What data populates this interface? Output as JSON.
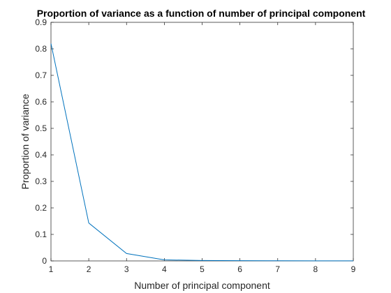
{
  "chart_data": {
    "type": "line",
    "title": "Proportion of variance as a function of number of principal component",
    "xlabel": "Number of principal component",
    "ylabel": "Proportion of variance",
    "xlim": [
      1,
      9
    ],
    "ylim": [
      0,
      0.9
    ],
    "x_ticks": [
      1,
      2,
      3,
      4,
      5,
      6,
      7,
      8,
      9
    ],
    "y_ticks": [
      0,
      0.1,
      0.2,
      0.3,
      0.4,
      0.5,
      0.6,
      0.7,
      0.8,
      0.9
    ],
    "x_tick_labels": [
      "1",
      "2",
      "3",
      "4",
      "5",
      "6",
      "7",
      "8",
      "9"
    ],
    "y_tick_labels": [
      "0",
      "0.1",
      "0.2",
      "0.3",
      "0.4",
      "0.5",
      "0.6",
      "0.7",
      "0.8",
      "0.9"
    ],
    "grid": false,
    "box": true,
    "series": [
      {
        "x": [
          1,
          2,
          3,
          4,
          5,
          6,
          7,
          8,
          9
        ],
        "values": [
          0.82,
          0.143,
          0.028,
          0.004,
          0.0015,
          0.001,
          0.0007,
          0.0004,
          0.0002
        ],
        "color": "#0072BD"
      }
    ]
  }
}
